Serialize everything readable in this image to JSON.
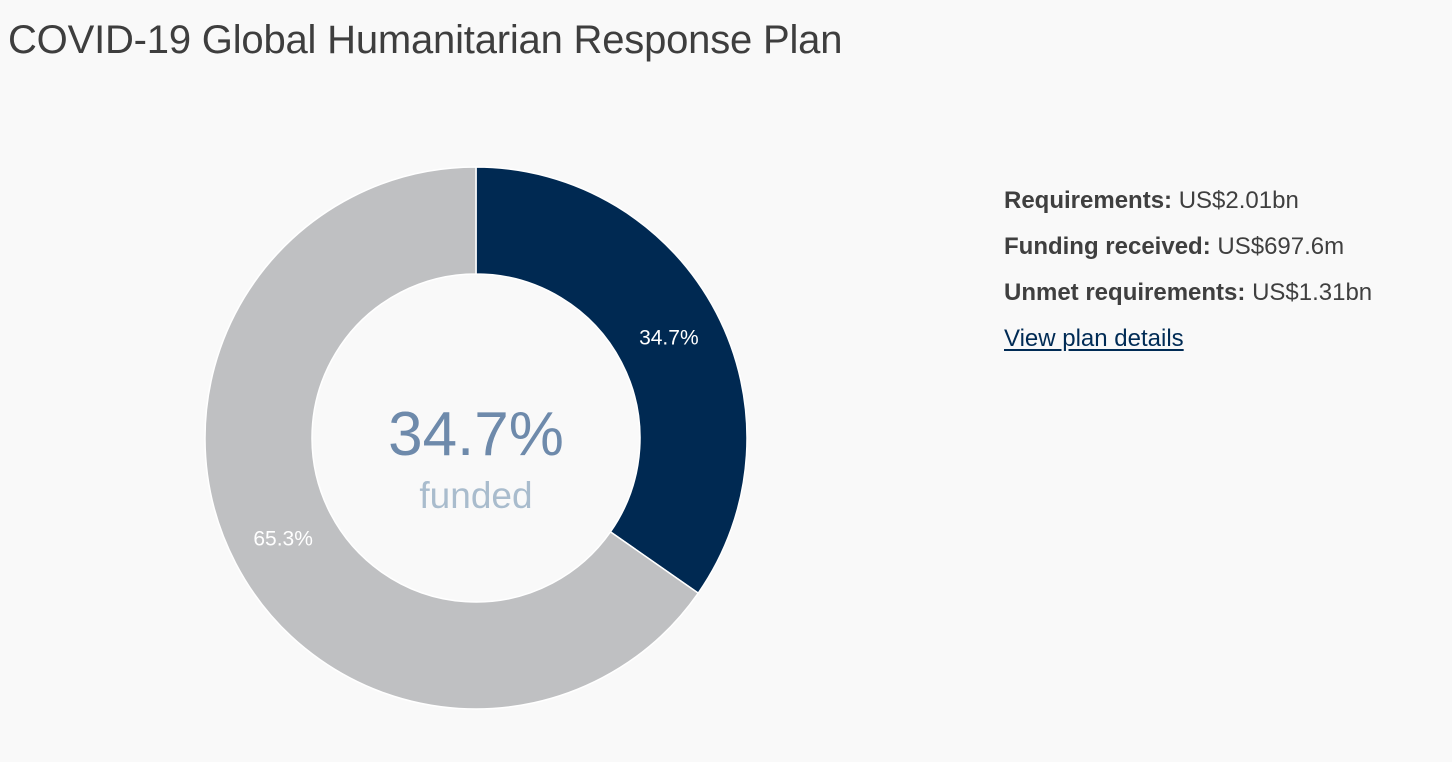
{
  "page": {
    "title": "COVID-19 Global Humanitarian Response Plan"
  },
  "summary": {
    "requirements_label": "Requirements:",
    "requirements_value": "US$2.01bn",
    "funding_label": "Funding received:",
    "funding_value": "US$697.6m",
    "unmet_label": "Unmet requirements:",
    "unmet_value": "US$1.31bn",
    "link_label": "View plan details"
  },
  "center": {
    "value": "34.7%",
    "label": "funded"
  },
  "colors": {
    "funded": "#002952",
    "unmet": "#bfc0c2",
    "center_value": "#6e8aab",
    "center_label": "#a9bccd",
    "link": "#002b55"
  },
  "chart_data": {
    "type": "pie",
    "variant": "donut",
    "title": "COVID-19 Global Humanitarian Response Plan",
    "slices": [
      {
        "value": 34.7,
        "label": "34.7%",
        "color": "#002952"
      },
      {
        "value": 65.3,
        "label": "65.3%",
        "color": "#bfc0c2"
      }
    ],
    "legend": "none"
  }
}
